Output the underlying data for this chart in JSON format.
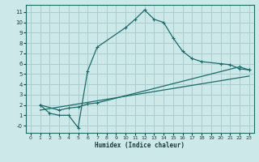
{
  "bg_color": "#cce8e8",
  "grid_color": "#aacccc",
  "line_color": "#1a6b6b",
  "xlabel": "Humidex (Indice chaleur)",
  "xlim": [
    -0.5,
    23.5
  ],
  "ylim": [
    -0.7,
    11.7
  ],
  "xticks": [
    0,
    1,
    2,
    3,
    4,
    5,
    6,
    7,
    8,
    9,
    10,
    11,
    12,
    13,
    14,
    15,
    16,
    17,
    18,
    19,
    20,
    21,
    22,
    23
  ],
  "yticks": [
    0,
    1,
    2,
    3,
    4,
    5,
    6,
    7,
    8,
    9,
    10,
    11
  ],
  "ytick_labels": [
    "-0",
    "1",
    "2",
    "3",
    "4",
    "5",
    "6",
    "7",
    "8",
    "9",
    "10",
    "11"
  ],
  "curve1_x": [
    1,
    2,
    3,
    4,
    5,
    6,
    7,
    10,
    11,
    12,
    13,
    14,
    15,
    16,
    17,
    18,
    20,
    21,
    22,
    23
  ],
  "curve1_y": [
    2.0,
    1.2,
    1.0,
    1.0,
    -0.2,
    5.3,
    7.6,
    9.5,
    10.3,
    11.2,
    10.3,
    10.0,
    8.5,
    7.2,
    6.5,
    6.2,
    6.0,
    5.9,
    5.5,
    5.4
  ],
  "curve2_x": [
    1,
    3,
    4,
    5,
    6,
    7,
    22,
    23
  ],
  "curve2_y": [
    2.0,
    1.5,
    1.7,
    1.8,
    2.1,
    2.2,
    5.7,
    5.4
  ],
  "curve3_x": [
    1,
    23
  ],
  "curve3_y": [
    1.5,
    4.8
  ]
}
